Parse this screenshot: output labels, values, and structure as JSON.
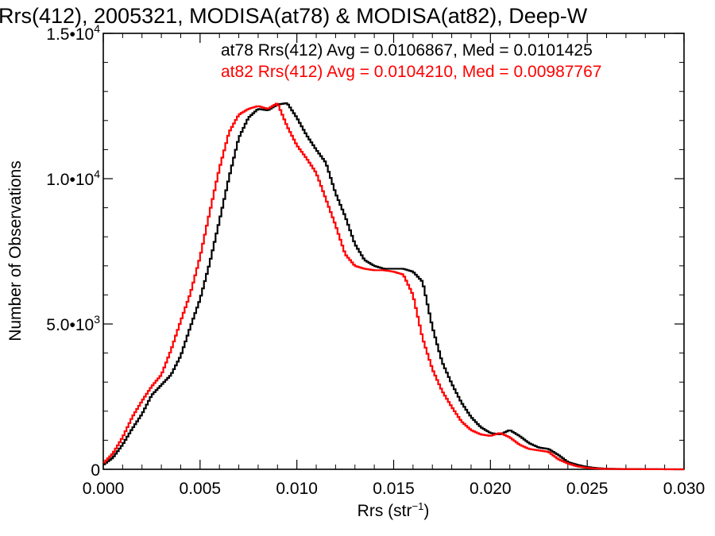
{
  "chart_data": {
    "type": "line",
    "style": "step-histogram",
    "title": "Rrs(412), 2005321, MODISA(at78) & MODISA(at82), Deep-W",
    "xlabel": "Rrs (str",
    "xlabel_sup": "−1",
    "xlabel_end": ")",
    "ylabel": "Number of Observations",
    "xlim": [
      0.0,
      0.03
    ],
    "ylim": [
      0,
      15000
    ],
    "grid": false,
    "x_ticks": [
      {
        "value": 0.0,
        "label": "0.000"
      },
      {
        "value": 0.005,
        "label": "0.005"
      },
      {
        "value": 0.01,
        "label": "0.010"
      },
      {
        "value": 0.015,
        "label": "0.015"
      },
      {
        "value": 0.02,
        "label": "0.020"
      },
      {
        "value": 0.025,
        "label": "0.025"
      },
      {
        "value": 0.03,
        "label": "0.030"
      }
    ],
    "y_ticks": [
      {
        "value": 0,
        "label": "0"
      },
      {
        "value": 5000,
        "label": "5.0•10",
        "sup": "3"
      },
      {
        "value": 10000,
        "label": "1.0•10",
        "sup": "4"
      },
      {
        "value": 15000,
        "label": "1.5•10",
        "sup": "4"
      }
    ],
    "annotations": [
      {
        "text": "at78 Rrs(412) Avg = 0.0106867, Med = 0.0101425",
        "color": "#000000"
      },
      {
        "text": "at82 Rrs(412) Avg = 0.0104210, Med = 0.00987767",
        "color": "#ff0000"
      }
    ],
    "bin_width": 0.0001,
    "series": [
      {
        "color": "#000000",
        "x": [
          0.0,
          0.0005,
          0.001,
          0.0015,
          0.002,
          0.0025,
          0.003,
          0.0035,
          0.004,
          0.0045,
          0.005,
          0.0055,
          0.006,
          0.0065,
          0.007,
          0.0075,
          0.008,
          0.0085,
          0.009,
          0.0095,
          0.01,
          0.0105,
          0.011,
          0.0115,
          0.012,
          0.0125,
          0.013,
          0.0135,
          0.014,
          0.0145,
          0.015,
          0.0155,
          0.016,
          0.0165,
          0.017,
          0.0175,
          0.018,
          0.0185,
          0.019,
          0.0195,
          0.02,
          0.0205,
          0.021,
          0.0215,
          0.022,
          0.0225,
          0.023,
          0.0235,
          0.024,
          0.0245,
          0.025,
          0.0255,
          0.026,
          0.027,
          0.028,
          0.029,
          0.03
        ],
        "y": [
          150,
          400,
          850,
          1400,
          1900,
          2550,
          2900,
          3250,
          3900,
          4900,
          5850,
          7100,
          8550,
          10050,
          11400,
          12100,
          12400,
          12350,
          12550,
          12600,
          12100,
          11500,
          11000,
          10550,
          9500,
          8700,
          7750,
          7200,
          7000,
          6900,
          6900,
          6900,
          6800,
          6450,
          4900,
          3700,
          2950,
          2300,
          1800,
          1450,
          1250,
          1200,
          1350,
          1150,
          900,
          750,
          700,
          500,
          250,
          150,
          80,
          40,
          20,
          10,
          5,
          2,
          0
        ]
      },
      {
        "color": "#ff0000",
        "x": [
          0.0,
          0.0005,
          0.001,
          0.0015,
          0.002,
          0.0025,
          0.003,
          0.0035,
          0.004,
          0.0045,
          0.005,
          0.0055,
          0.006,
          0.0065,
          0.007,
          0.0075,
          0.008,
          0.0085,
          0.009,
          0.0095,
          0.01,
          0.0105,
          0.011,
          0.0115,
          0.012,
          0.0125,
          0.013,
          0.0135,
          0.014,
          0.0145,
          0.015,
          0.0155,
          0.016,
          0.0165,
          0.017,
          0.0175,
          0.018,
          0.0185,
          0.019,
          0.0195,
          0.02,
          0.0205,
          0.021,
          0.0215,
          0.022,
          0.0225,
          0.023,
          0.0235,
          0.024,
          0.0245,
          0.025,
          0.0255,
          0.026,
          0.027,
          0.028,
          0.029,
          0.03
        ],
        "y": [
          200,
          550,
          1100,
          1800,
          2350,
          2850,
          3250,
          4100,
          5100,
          6050,
          7300,
          8850,
          10350,
          11600,
          12200,
          12400,
          12500,
          12400,
          12600,
          11800,
          11150,
          10700,
          10200,
          9300,
          8400,
          7400,
          7000,
          6900,
          6850,
          6850,
          6800,
          6700,
          6000,
          4500,
          3450,
          2700,
          2150,
          1650,
          1350,
          1200,
          1150,
          1250,
          1100,
          850,
          700,
          650,
          600,
          350,
          200,
          100,
          50,
          25,
          15,
          8,
          4,
          1,
          0
        ]
      }
    ]
  }
}
